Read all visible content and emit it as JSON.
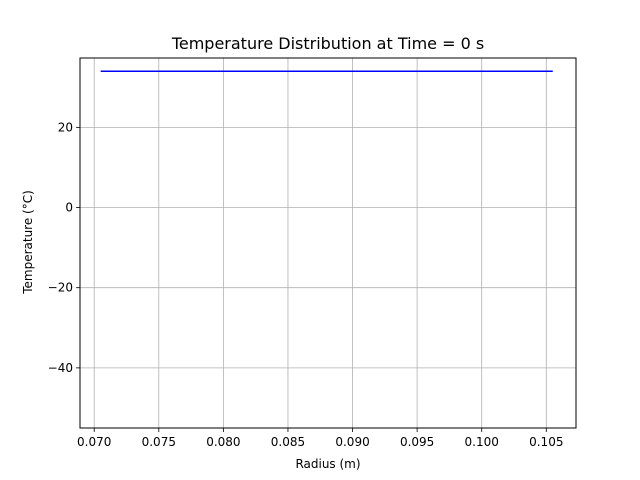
{
  "chart_data": {
    "type": "line",
    "title": "Temperature Distribution at Time = 0 s",
    "xlabel": "Radius (m)",
    "ylabel": "Temperature (°C)",
    "xlim": [
      0.0689,
      0.1073
    ],
    "ylim": [
      -55,
      37.3
    ],
    "x_ticks": [
      0.07,
      0.075,
      0.08,
      0.085,
      0.09,
      0.095,
      0.1,
      0.105
    ],
    "x_tick_labels": [
      "0.070",
      "0.075",
      "0.080",
      "0.085",
      "0.090",
      "0.095",
      "0.100",
      "0.105"
    ],
    "y_ticks": [
      -40,
      -20,
      0,
      20
    ],
    "y_tick_labels": [
      "−40",
      "−20",
      "0",
      "20"
    ],
    "grid": true,
    "series": [
      {
        "color": "#0000ff",
        "x": [
          0.0705,
          0.1055
        ],
        "y": [
          34,
          34
        ]
      }
    ]
  }
}
